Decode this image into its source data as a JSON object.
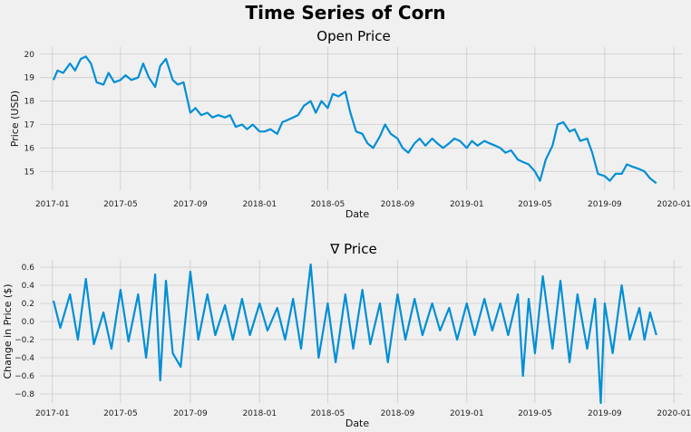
{
  "suptitle": "Time Series of Corn",
  "colors": {
    "series": "#008fd5",
    "background": "#f0f0f0",
    "grid": "#cbcbcb"
  },
  "chart_data": [
    {
      "type": "line",
      "title": "Open Price",
      "xlabel": "Date",
      "ylabel": "Price (USD)",
      "xlim": [
        "2016-12-10",
        "2020-01-15"
      ],
      "ylim": [
        14.2,
        20.3
      ],
      "xticks": [
        "2017-01-01",
        "2017-05-01",
        "2017-09-01",
        "2018-01-01",
        "2018-05-01",
        "2018-09-01",
        "2019-01-01",
        "2019-05-01",
        "2019-09-01",
        "2020-01-01"
      ],
      "xtick_labels": [
        "2017-01",
        "2017-05",
        "2017-09",
        "2018-01",
        "2018-05",
        "2018-09",
        "2019-01",
        "2019-05",
        "2019-09",
        "2020-01"
      ],
      "yticks": [
        15,
        16,
        17,
        18,
        19,
        20
      ],
      "grid": true,
      "series": [
        {
          "x": [
            "2017-01-03",
            "2017-01-10",
            "2017-01-20",
            "2017-02-01",
            "2017-02-10",
            "2017-02-20",
            "2017-03-01",
            "2017-03-10",
            "2017-03-20",
            "2017-04-01",
            "2017-04-10",
            "2017-04-20",
            "2017-05-01",
            "2017-05-10",
            "2017-05-20",
            "2017-06-01",
            "2017-06-10",
            "2017-06-20",
            "2017-07-01",
            "2017-07-10",
            "2017-07-20",
            "2017-08-01",
            "2017-08-10",
            "2017-08-20",
            "2017-09-01",
            "2017-09-10",
            "2017-09-20",
            "2017-10-01",
            "2017-10-10",
            "2017-10-20",
            "2017-11-01",
            "2017-11-10",
            "2017-11-20",
            "2017-12-01",
            "2017-12-10",
            "2017-12-20",
            "2018-01-01",
            "2018-01-10",
            "2018-01-20",
            "2018-02-01",
            "2018-02-10",
            "2018-02-20",
            "2018-03-01",
            "2018-03-10",
            "2018-03-20",
            "2018-04-01",
            "2018-04-10",
            "2018-04-20",
            "2018-05-01",
            "2018-05-10",
            "2018-05-20",
            "2018-06-01",
            "2018-06-10",
            "2018-06-20",
            "2018-07-01",
            "2018-07-10",
            "2018-07-20",
            "2018-08-01",
            "2018-08-10",
            "2018-08-20",
            "2018-09-01",
            "2018-09-10",
            "2018-09-20",
            "2018-10-01",
            "2018-10-10",
            "2018-10-20",
            "2018-11-01",
            "2018-11-10",
            "2018-11-20",
            "2018-12-01",
            "2018-12-10",
            "2018-12-20",
            "2019-01-01",
            "2019-01-10",
            "2019-01-20",
            "2019-02-01",
            "2019-02-10",
            "2019-02-20",
            "2019-03-01",
            "2019-03-10",
            "2019-03-20",
            "2019-04-01",
            "2019-04-10",
            "2019-04-20",
            "2019-05-01",
            "2019-05-10",
            "2019-05-20",
            "2019-06-01",
            "2019-06-10",
            "2019-06-20",
            "2019-07-01",
            "2019-07-10",
            "2019-07-20",
            "2019-08-01",
            "2019-08-10",
            "2019-08-20",
            "2019-09-01",
            "2019-09-10",
            "2019-09-20",
            "2019-10-01",
            "2019-10-10",
            "2019-10-20",
            "2019-11-01",
            "2019-11-10",
            "2019-11-20",
            "2019-12-01"
          ],
          "y": [
            18.9,
            19.3,
            19.2,
            19.6,
            19.3,
            19.8,
            19.9,
            19.6,
            18.8,
            18.7,
            19.2,
            18.8,
            18.9,
            19.1,
            18.9,
            19.0,
            19.6,
            19.0,
            18.6,
            19.5,
            19.8,
            18.9,
            18.7,
            18.8,
            17.5,
            17.7,
            17.4,
            17.5,
            17.3,
            17.4,
            17.3,
            17.4,
            16.9,
            17.0,
            16.8,
            17.0,
            16.7,
            16.7,
            16.8,
            16.6,
            17.1,
            17.2,
            17.3,
            17.4,
            17.8,
            18.0,
            17.5,
            18.0,
            17.7,
            18.3,
            18.2,
            18.4,
            17.5,
            16.7,
            16.6,
            16.2,
            16.0,
            16.5,
            17.0,
            16.6,
            16.4,
            16.0,
            15.8,
            16.2,
            16.4,
            16.1,
            16.4,
            16.2,
            16.0,
            16.2,
            16.4,
            16.3,
            16.0,
            16.3,
            16.1,
            16.3,
            16.2,
            16.1,
            16.0,
            15.8,
            15.9,
            15.5,
            15.4,
            15.3,
            15.0,
            14.6,
            15.5,
            16.1,
            17.0,
            17.1,
            16.7,
            16.8,
            16.3,
            16.4,
            15.8,
            14.9,
            14.8,
            14.6,
            14.9,
            14.9,
            15.3,
            15.2,
            15.1,
            15.0,
            14.7,
            14.5
          ]
        }
      ]
    },
    {
      "type": "line",
      "title": "∇ Price",
      "xlabel": "Date",
      "ylabel": "Change in Price ($)",
      "xlim": [
        "2016-12-10",
        "2020-01-15"
      ],
      "ylim": [
        -0.9,
        0.68
      ],
      "xticks": [
        "2017-01-01",
        "2017-05-01",
        "2017-09-01",
        "2018-01-01",
        "2018-05-01",
        "2018-09-01",
        "2019-01-01",
        "2019-05-01",
        "2019-09-01",
        "2020-01-01"
      ],
      "xtick_labels": [
        "2017-01",
        "2017-05",
        "2017-09",
        "2018-01",
        "2018-05",
        "2018-09",
        "2019-01",
        "2019-05",
        "2019-09",
        "2020-01"
      ],
      "yticks": [
        -0.8,
        -0.6,
        -0.4,
        -0.2,
        0.0,
        0.2,
        0.4,
        0.6
      ],
      "ytick_labels": [
        "−0.8",
        "−0.6",
        "−0.4",
        "−0.2",
        "0.0",
        "0.2",
        "0.4",
        "0.6"
      ],
      "grid": true,
      "series": [
        {
          "x": [
            "2017-01-03",
            "2017-01-15",
            "2017-02-01",
            "2017-02-15",
            "2017-03-01",
            "2017-03-15",
            "2017-04-01",
            "2017-04-15",
            "2017-05-01",
            "2017-05-15",
            "2017-06-01",
            "2017-06-15",
            "2017-07-01",
            "2017-07-10",
            "2017-07-20",
            "2017-08-01",
            "2017-08-15",
            "2017-09-01",
            "2017-09-15",
            "2017-10-01",
            "2017-10-15",
            "2017-11-01",
            "2017-11-15",
            "2017-12-01",
            "2017-12-15",
            "2018-01-01",
            "2018-01-15",
            "2018-02-01",
            "2018-02-15",
            "2018-03-01",
            "2018-03-15",
            "2018-04-01",
            "2018-04-15",
            "2018-05-01",
            "2018-05-15",
            "2018-06-01",
            "2018-06-15",
            "2018-07-01",
            "2018-07-15",
            "2018-08-01",
            "2018-08-15",
            "2018-09-01",
            "2018-09-15",
            "2018-10-01",
            "2018-10-15",
            "2018-11-01",
            "2018-11-15",
            "2018-12-01",
            "2018-12-15",
            "2019-01-01",
            "2019-01-15",
            "2019-02-01",
            "2019-02-15",
            "2019-03-01",
            "2019-03-15",
            "2019-04-01",
            "2019-04-10",
            "2019-04-20",
            "2019-05-01",
            "2019-05-15",
            "2019-06-01",
            "2019-06-15",
            "2019-07-01",
            "2019-07-15",
            "2019-08-01",
            "2019-08-15",
            "2019-08-25",
            "2019-09-01",
            "2019-09-15",
            "2019-10-01",
            "2019-10-15",
            "2019-11-01",
            "2019-11-10",
            "2019-11-20",
            "2019-12-01"
          ],
          "y": [
            0.23,
            -0.07,
            0.3,
            -0.2,
            0.47,
            -0.25,
            0.1,
            -0.3,
            0.35,
            -0.22,
            0.3,
            -0.4,
            0.52,
            -0.65,
            0.45,
            -0.35,
            -0.5,
            0.55,
            -0.2,
            0.3,
            -0.15,
            0.18,
            -0.2,
            0.25,
            -0.15,
            0.2,
            -0.1,
            0.15,
            -0.2,
            0.25,
            -0.3,
            0.63,
            -0.4,
            0.2,
            -0.45,
            0.3,
            -0.3,
            0.35,
            -0.25,
            0.2,
            -0.45,
            0.3,
            -0.2,
            0.25,
            -0.15,
            0.2,
            -0.1,
            0.15,
            -0.2,
            0.2,
            -0.15,
            0.25,
            -0.1,
            0.2,
            -0.15,
            0.3,
            -0.6,
            0.25,
            -0.35,
            0.5,
            -0.3,
            0.45,
            -0.45,
            0.3,
            -0.3,
            0.25,
            -0.9,
            0.2,
            -0.35,
            0.4,
            -0.2,
            0.15,
            -0.2,
            0.1,
            -0.15
          ]
        }
      ]
    }
  ]
}
